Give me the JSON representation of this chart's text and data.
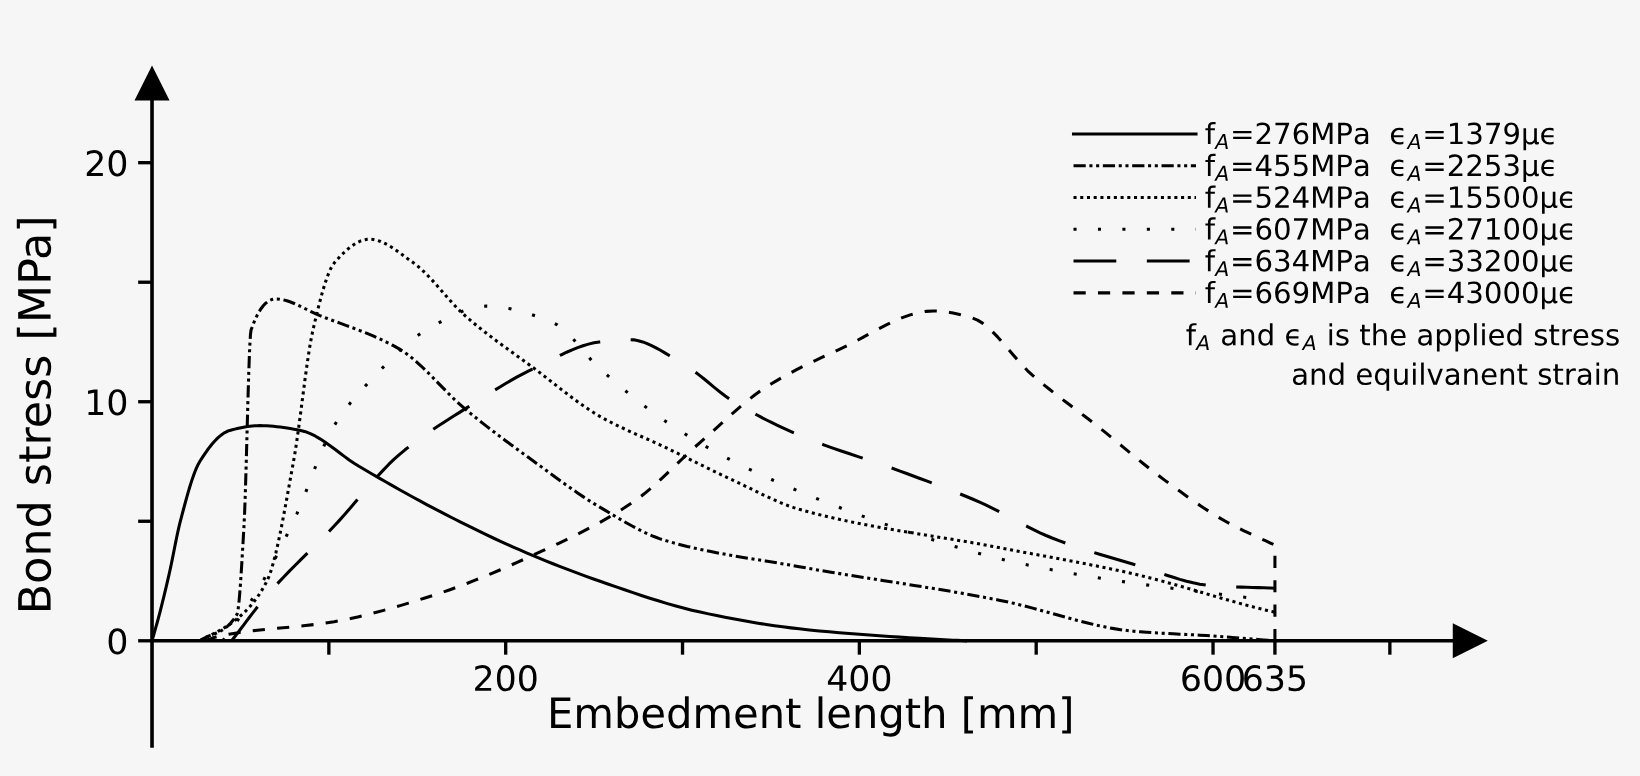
{
  "chart_data": {
    "type": "line",
    "xlabel": "Embedment length [mm]",
    "ylabel": "Bond stress [MPa]",
    "xlim": [
      0,
      745
    ],
    "ylim": [
      -4.4,
      23.3
    ],
    "xticks": [
      {
        "value": 100,
        "label": null
      },
      200,
      {
        "value": 300,
        "label": null
      },
      400,
      {
        "value": 500,
        "label": null
      },
      600,
      635,
      {
        "value": 700,
        "label": null
      }
    ],
    "yticks": [
      0,
      {
        "value": 5,
        "label": null
      },
      10,
      {
        "value": 15,
        "label": null
      },
      20
    ],
    "grid": false,
    "legend": "top right",
    "marker": "none",
    "annotations": [
      "f$_{A}$ and ϵ$_{A}$ is the applied stress\nand equilvanent strain"
    ],
    "series": [
      {
        "name": "f$_{A}$=276MPa  ϵ$_{A}$=1379μϵ",
        "color": "#000000",
        "line_style": "solid",
        "x": [
          0,
          4.5,
          10,
          16,
          27,
          44,
          61,
          84,
          117,
          163,
          208,
          253,
          310,
          366,
          434,
          460
        ],
        "values": [
          0,
          1.2,
          2.9,
          5,
          7.5,
          8.8,
          9,
          8.8,
          7.3,
          5.4,
          3.8,
          2.5,
          1.2,
          0.5,
          0.1,
          0
        ]
      },
      {
        "name": "f$_{A}$=455MPa  ϵ$_{A}$=2253μϵ",
        "color": "#000000",
        "line_style": "dashdotdot",
        "x": [
          27,
          48,
          52,
          56,
          70,
          95,
          140,
          177,
          216,
          253,
          290,
          366,
          479,
          555,
          600,
          635
        ],
        "values": [
          0,
          1.1,
          4.8,
          13,
          14.3,
          13.6,
          12.2,
          9.7,
          7.5,
          5.6,
          4.2,
          3.1,
          1.7,
          0.4,
          0.2,
          0
        ]
      },
      {
        "name": "f$_{A}$=524MPa  ϵ$_{A}$=15500μϵ",
        "color": "#000000",
        "line_style": "dotted",
        "x": [
          27,
          46,
          65,
          80,
          91,
          103,
          123,
          148,
          177,
          216,
          253,
          290,
          329,
          366,
          479,
          555,
          629,
          635
        ],
        "values": [
          0,
          0.8,
          2.5,
          7.5,
          13,
          15.8,
          16.8,
          15.8,
          13.6,
          11.4,
          9.4,
          8.1,
          6.7,
          5.5,
          3.9,
          2.8,
          1.3,
          1.2
        ]
      },
      {
        "name": "f$_{A}$=607MPa  ϵ$_{A}$=27100μϵ",
        "color": "#000000",
        "line_style": "loosely dotted",
        "x": [
          40,
          58,
          80,
          103,
          125,
          155,
          189,
          227,
          253,
          290,
          329,
          381,
          434,
          487,
          547,
          620
        ],
        "values": [
          0,
          1.9,
          5,
          9,
          11,
          13,
          14,
          13.3,
          11.4,
          9.2,
          7.5,
          5.8,
          4.4,
          3.3,
          2.5,
          1.8
        ]
      },
      {
        "name": "f$_{A}$=634MPa  ϵ$_{A}$=33200μϵ",
        "color": "#000000",
        "line_style": "long dash",
        "x": [
          45,
          65,
          103,
          140,
          177,
          216,
          253,
          270,
          300,
          329,
          366,
          423,
          468,
          509,
          555,
          600,
          635
        ],
        "values": [
          0,
          1.9,
          4.8,
          7.8,
          9.7,
          11.4,
          12.5,
          12.6,
          11.6,
          10,
          8.6,
          7.1,
          5.8,
          4.3,
          3.2,
          2.3,
          2.2
        ]
      },
      {
        "name": "f$_{A}$=669MPa  ϵ$_{A}$=43000μϵ",
        "color": "#000000",
        "line_style": "dashed",
        "x": [
          30,
          38,
          103,
          159,
          216,
          272,
          310,
          347,
          389,
          442,
          464,
          498,
          536,
          573,
          607,
          635,
          635
        ],
        "values": [
          0,
          0.2,
          0.8,
          1.9,
          3.6,
          5.8,
          8.3,
          10.6,
          12.2,
          13.8,
          13.5,
          11.1,
          8.9,
          6.7,
          5,
          4,
          0
        ]
      }
    ]
  }
}
